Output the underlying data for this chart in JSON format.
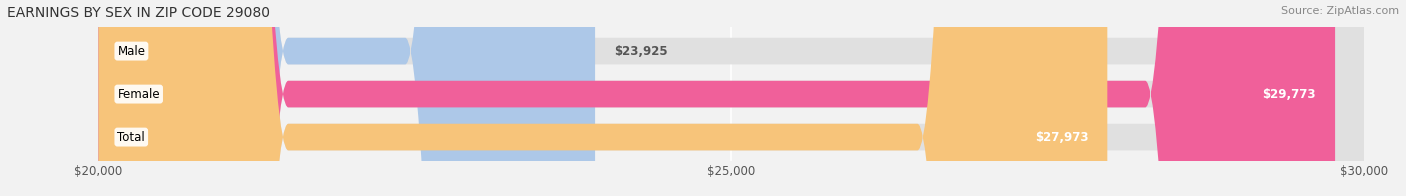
{
  "title": "EARNINGS BY SEX IN ZIP CODE 29080",
  "source": "Source: ZipAtlas.com",
  "categories": [
    "Male",
    "Female",
    "Total"
  ],
  "values": [
    23925,
    29773,
    27973
  ],
  "bar_colors": [
    "#adc8e8",
    "#f0609a",
    "#f7c47a"
  ],
  "value_labels": [
    "$23,925",
    "$29,773",
    "$27,973"
  ],
  "xmin": 20000,
  "xmax": 30000,
  "xticks": [
    20000,
    25000,
    30000
  ],
  "xtick_labels": [
    "$20,000",
    "$25,000",
    "$30,000"
  ],
  "background_color": "#f2f2f2",
  "bar_bg_color": "#e0e0e0",
  "title_fontsize": 10,
  "source_fontsize": 8,
  "label_fontsize": 8.5,
  "value_fontsize": 8.5,
  "tick_fontsize": 8.5
}
